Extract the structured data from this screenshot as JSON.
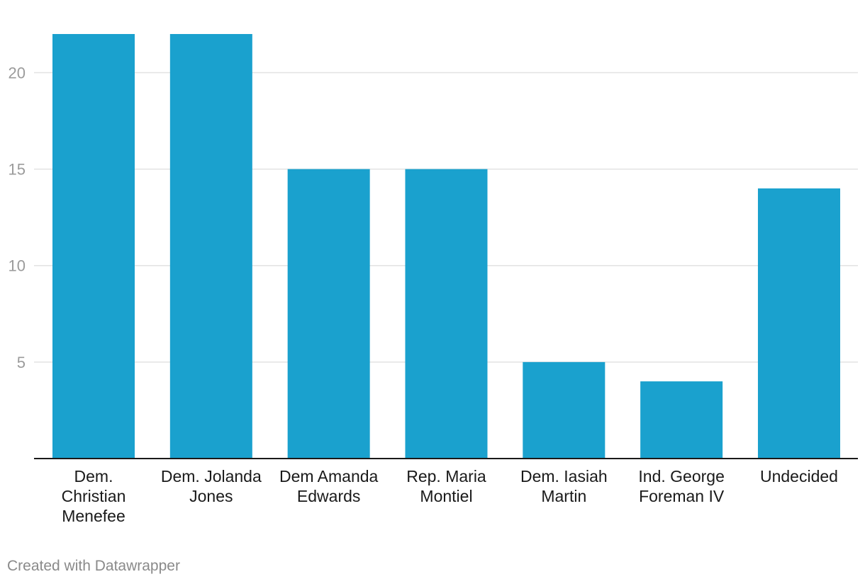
{
  "chart_data": {
    "type": "bar",
    "categories": [
      "Dem. Christian Menefee",
      "Dem. Jolanda Jones",
      "Dem Amanda Edwards",
      "Rep. Maria Montiel",
      "Dem. Iasiah Martin",
      "Ind. George Foreman IV",
      "Undecided"
    ],
    "category_lines": [
      [
        "Dem.",
        "Christian",
        "Menefee"
      ],
      [
        "Dem. Jolanda",
        "Jones"
      ],
      [
        "Dem Amanda",
        "Edwards"
      ],
      [
        "Rep. Maria",
        "Montiel"
      ],
      [
        "Dem. Iasiah",
        "Martin"
      ],
      [
        "Ind. George",
        "Foreman IV"
      ],
      [
        "Undecided"
      ]
    ],
    "values": [
      22,
      22,
      15,
      15,
      5,
      4,
      14
    ],
    "title": "",
    "xlabel": "",
    "ylabel": "",
    "ylim": [
      0,
      22
    ],
    "yticks": [
      5,
      10,
      15,
      20
    ],
    "grid": true,
    "legend": "none",
    "bar_color": "#1aa1ce"
  },
  "footer": {
    "credit": "Created with Datawrapper"
  }
}
